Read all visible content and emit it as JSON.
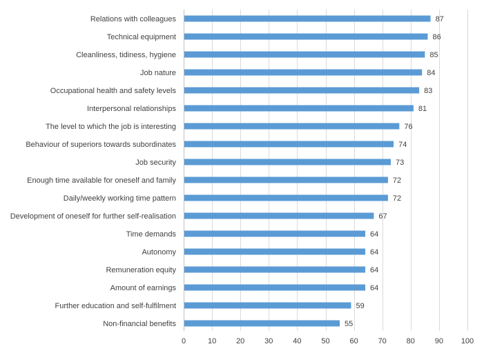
{
  "chart_data": {
    "type": "bar",
    "orientation": "horizontal",
    "title": "",
    "xlabel": "",
    "ylabel": "",
    "xlim": [
      0,
      100
    ],
    "x_ticks": [
      0,
      10,
      20,
      30,
      40,
      50,
      60,
      70,
      80,
      90,
      100
    ],
    "grid": true,
    "legend": "none",
    "bar_color": "#5b9bd5",
    "categories": [
      "Relations with colleagues",
      "Technical equipment",
      "Cleanliness, tidiness, hygiene",
      "Job nature",
      "Occupational health and safety levels",
      "Interpersonal relationships",
      "The level to which the job is interesting",
      "Behaviour of superiors towards subordinates",
      "Job security",
      "Enough time available for oneself and family",
      "Daily/weekly working time pattern",
      "Development of oneself for further self-realisation",
      "Time demands",
      "Autonomy",
      "Remuneration equity",
      "Amount of earnings",
      "Further education and self-fulfilment",
      "Non-financial benefits"
    ],
    "values": [
      87,
      86,
      85,
      84,
      83,
      81,
      76,
      74,
      73,
      72,
      72,
      67,
      64,
      64,
      64,
      64,
      59,
      55
    ]
  }
}
